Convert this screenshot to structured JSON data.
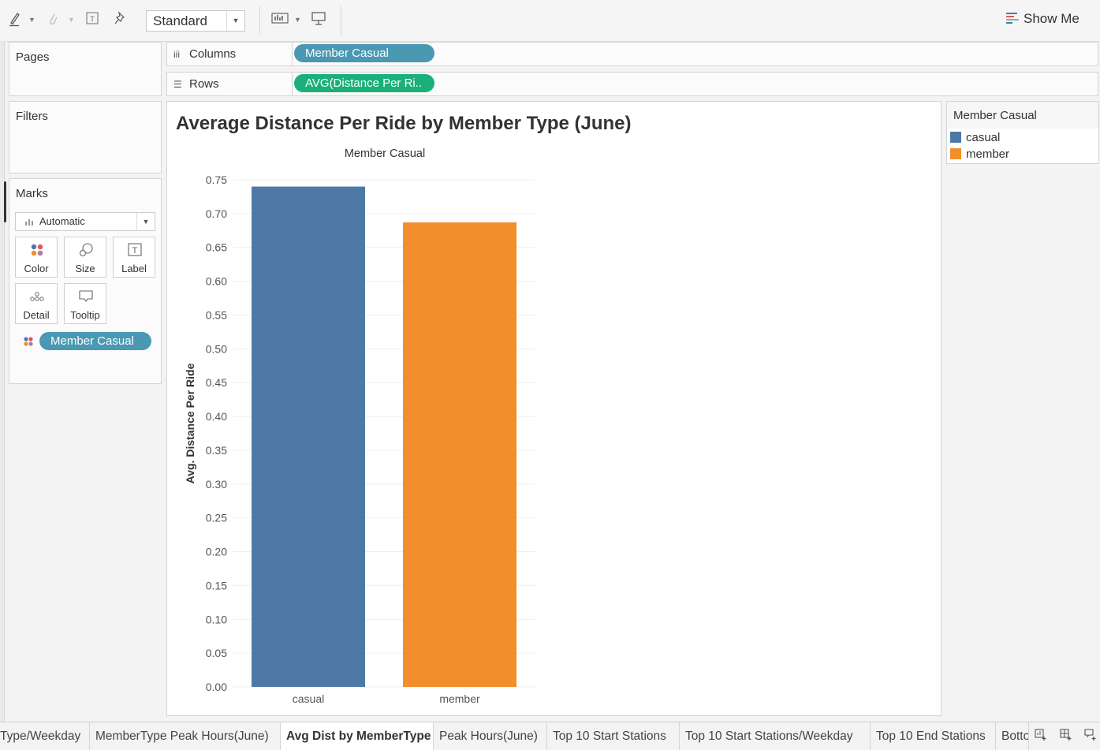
{
  "toolbar": {
    "fit_select": "Standard",
    "show_me_label": "Show Me"
  },
  "shelves": {
    "pages_title": "Pages",
    "filters_title": "Filters",
    "columns_label": "Columns",
    "rows_label": "Rows",
    "columns_pill": "Member Casual",
    "rows_pill": "AVG(Distance Per Ri.."
  },
  "marks": {
    "title": "Marks",
    "mark_type": "Automatic",
    "buttons": [
      "Color",
      "Size",
      "Label",
      "Detail",
      "Tooltip"
    ],
    "color_pill": "Member Casual"
  },
  "legend": {
    "title": "Member Casual",
    "items": [
      {
        "label": "casual",
        "color": "#4e79a7"
      },
      {
        "label": "member",
        "color": "#f28e2b"
      }
    ]
  },
  "chart_data": {
    "type": "bar",
    "title": "Average Distance Per Ride by Member Type (June)",
    "column_header": "Member Casual",
    "ylabel": "Avg. Distance Per Ride",
    "xlabel": "",
    "categories": [
      "casual",
      "member"
    ],
    "values": [
      0.74,
      0.687
    ],
    "colors": [
      "#4e79a7",
      "#f28e2b"
    ],
    "ylim": [
      0,
      0.75
    ],
    "yticks": [
      "0.00",
      "0.05",
      "0.10",
      "0.15",
      "0.20",
      "0.25",
      "0.30",
      "0.35",
      "0.40",
      "0.45",
      "0.50",
      "0.55",
      "0.60",
      "0.65",
      "0.70",
      "0.75"
    ],
    "grid": true
  },
  "tabs": [
    {
      "label": "Type/Weekday",
      "active": false
    },
    {
      "label": "MemberType Peak Hours(June)",
      "active": false
    },
    {
      "label": "Avg Dist by MemberType",
      "active": true
    },
    {
      "label": "Peak Hours(June)",
      "active": false
    },
    {
      "label": "Top 10 Start Stations",
      "active": false
    },
    {
      "label": "Top 10 Start Stations/Weekday",
      "active": false
    },
    {
      "label": "Top 10 End Stations",
      "active": false
    },
    {
      "label": "Botto",
      "active": false
    }
  ]
}
